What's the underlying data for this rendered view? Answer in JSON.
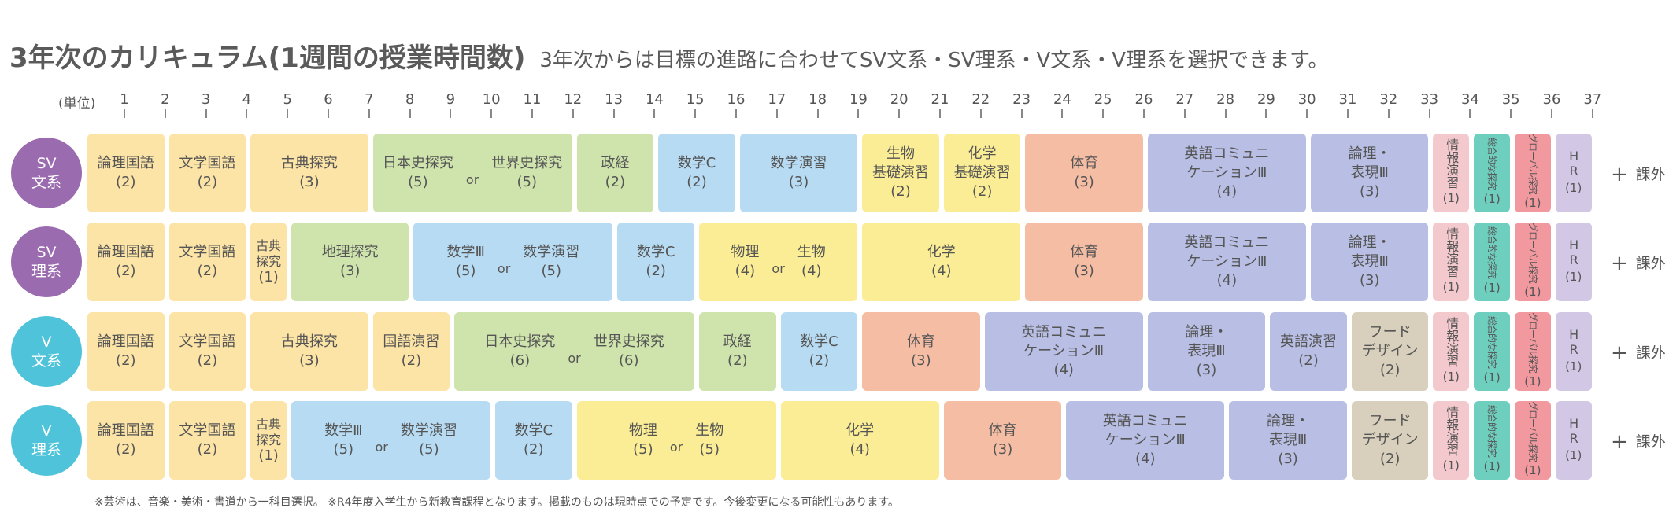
{
  "title": "3年次のカリキュラム(1週間の授業時間数)",
  "subtitle": "3年次からは目標の進路に合わせてSV文系・SV理系・V文系・V理系を選択できます。",
  "unit_label": "(単位)",
  "ticks": [
    "1",
    "2",
    "3",
    "4",
    "5",
    "6",
    "7",
    "8",
    "9",
    "10",
    "11",
    "12",
    "13",
    "14",
    "15",
    "16",
    "17",
    "18",
    "19",
    "20",
    "21",
    "22",
    "23",
    "24",
    "25",
    "26",
    "27",
    "28",
    "29",
    "30",
    "31",
    "32",
    "33",
    "34",
    "35",
    "36",
    "37"
  ],
  "extra_label": "課外",
  "extra_plus": "+",
  "colors": {
    "sv_circle": "#9b6bb0",
    "v_circle": "#4fc3d9",
    "kokugo": "#fce3a6",
    "shakai": "#cfe3ad",
    "sugaku": "#b7dbf2",
    "rika": "#fbed95",
    "taiiku": "#f5bda4",
    "eigo": "#b9bfe4",
    "food": "#d8d0bc",
    "jyoho": "#f4c9cd",
    "sogo": "#6fcfbf",
    "global": "#f2989f",
    "hr": "#d2c8e6"
  },
  "rows": [
    {
      "label_line1": "SV",
      "label_line2": "文系",
      "circle": "sv_circle",
      "cells": [
        {
          "c": "kokugo",
          "name": "論理国語",
          "units": "(2)"
        },
        {
          "c": "kokugo",
          "name": "文学国語",
          "units": "(2)"
        },
        {
          "c": "kokugo",
          "name": "古典探究",
          "units": "(3)"
        },
        {
          "c": "shakai",
          "or": true,
          "a_name": "日本史探究",
          "a_units": "(5)",
          "or_text": "or",
          "b_name": "世界史探究",
          "b_units": "(5)"
        },
        {
          "c": "shakai",
          "name": "政経",
          "units": "(2)"
        },
        {
          "c": "sugaku",
          "name": "数学C",
          "units": "(2)"
        },
        {
          "c": "sugaku",
          "name": "数学演習",
          "units": "(3)"
        },
        {
          "c": "rika",
          "name": "生物",
          "name2": "基礎演習",
          "units": "(2)"
        },
        {
          "c": "rika",
          "name": "化学",
          "name2": "基礎演習",
          "units": "(2)"
        },
        {
          "c": "taiiku",
          "name": "体育",
          "units": "(3)"
        },
        {
          "c": "eigo",
          "name": "英語コミュニ",
          "name2": "ケーションⅢ",
          "units": "(4)"
        },
        {
          "c": "eigo",
          "name": "論理・",
          "name2": "表現Ⅲ",
          "units": "(3)"
        },
        {
          "c": "jyoho",
          "narrow": "v",
          "name": "情報演習",
          "units": "(1)"
        },
        {
          "c": "sogo",
          "narrow": "r",
          "name": "総合的な探究",
          "units": "(1)"
        },
        {
          "c": "global",
          "narrow": "r",
          "name": "グローバル探究",
          "units": "(1)"
        },
        {
          "c": "hr",
          "narrow": "v",
          "name": "HR",
          "units": "(1)"
        }
      ]
    },
    {
      "label_line1": "SV",
      "label_line2": "理系",
      "circle": "sv_circle",
      "cells": [
        {
          "c": "kokugo",
          "name": "論理国語",
          "units": "(2)"
        },
        {
          "c": "kokugo",
          "name": "文学国語",
          "units": "(2)"
        },
        {
          "c": "kokugo",
          "narrow": "s",
          "name": "古典",
          "name2": "探究",
          "units": "(1)"
        },
        {
          "c": "shakai",
          "name": "地理探究",
          "units": "(3)"
        },
        {
          "c": "sugaku",
          "or": true,
          "a_name": "数学Ⅲ",
          "a_units": "(5)",
          "or_text": "or",
          "b_name": "数学演習",
          "b_units": "(5)"
        },
        {
          "c": "sugaku",
          "name": "数学C",
          "units": "(2)"
        },
        {
          "c": "rika",
          "or": true,
          "a_name": "物理",
          "a_units": "(4)",
          "or_text": "or",
          "b_name": "生物",
          "b_units": "(4)"
        },
        {
          "c": "rika",
          "name": "化学",
          "units": "(4)"
        },
        {
          "c": "taiiku",
          "name": "体育",
          "units": "(3)"
        },
        {
          "c": "eigo",
          "name": "英語コミュニ",
          "name2": "ケーションⅢ",
          "units": "(4)"
        },
        {
          "c": "eigo",
          "name": "論理・",
          "name2": "表現Ⅲ",
          "units": "(3)"
        },
        {
          "c": "jyoho",
          "narrow": "v",
          "name": "情報演習",
          "units": "(1)"
        },
        {
          "c": "sogo",
          "narrow": "r",
          "name": "総合的な探究",
          "units": "(1)"
        },
        {
          "c": "global",
          "narrow": "r",
          "name": "グローバル探究",
          "units": "(1)"
        },
        {
          "c": "hr",
          "narrow": "v",
          "name": "HR",
          "units": "(1)"
        }
      ]
    },
    {
      "label_line1": "V",
      "label_line2": "文系",
      "circle": "v_circle",
      "cells": [
        {
          "c": "kokugo",
          "name": "論理国語",
          "units": "(2)"
        },
        {
          "c": "kokugo",
          "name": "文学国語",
          "units": "(2)"
        },
        {
          "c": "kokugo",
          "name": "古典探究",
          "units": "(3)"
        },
        {
          "c": "kokugo",
          "name": "国語演習",
          "units": "(2)"
        },
        {
          "c": "shakai",
          "or": true,
          "a_name": "日本史探究",
          "a_units": "(6)",
          "or_text": "or",
          "b_name": "世界史探究",
          "b_units": "(6)"
        },
        {
          "c": "shakai",
          "name": "政経",
          "units": "(2)"
        },
        {
          "c": "sugaku",
          "name": "数学C",
          "units": "(2)"
        },
        {
          "c": "taiiku",
          "name": "体育",
          "units": "(3)"
        },
        {
          "c": "eigo",
          "name": "英語コミュニ",
          "name2": "ケーションⅢ",
          "units": "(4)"
        },
        {
          "c": "eigo",
          "name": "論理・",
          "name2": "表現Ⅲ",
          "units": "(3)"
        },
        {
          "c": "eigo",
          "name": "英語演習",
          "units": "(2)"
        },
        {
          "c": "food",
          "name": "フード",
          "name2": "デザイン",
          "units": "(2)"
        },
        {
          "c": "jyoho",
          "narrow": "v",
          "name": "情報演習",
          "units": "(1)"
        },
        {
          "c": "sogo",
          "narrow": "r",
          "name": "総合的な探究",
          "units": "(1)"
        },
        {
          "c": "global",
          "narrow": "r",
          "name": "グローバル探究",
          "units": "(1)"
        },
        {
          "c": "hr",
          "narrow": "v",
          "name": "HR",
          "units": "(1)"
        }
      ]
    },
    {
      "label_line1": "V",
      "label_line2": "理系",
      "circle": "v_circle",
      "cells": [
        {
          "c": "kokugo",
          "name": "論理国語",
          "units": "(2)"
        },
        {
          "c": "kokugo",
          "name": "文学国語",
          "units": "(2)"
        },
        {
          "c": "kokugo",
          "narrow": "s",
          "name": "古典",
          "name2": "探究",
          "units": "(1)"
        },
        {
          "c": "sugaku",
          "or": true,
          "a_name": "数学Ⅲ",
          "a_units": "(5)",
          "or_text": "or",
          "b_name": "数学演習",
          "b_units": "(5)"
        },
        {
          "c": "sugaku",
          "name": "数学C",
          "units": "(2)"
        },
        {
          "c": "rika",
          "or": true,
          "a_name": "物理",
          "a_units": "(5)",
          "or_text": "or",
          "b_name": "生物",
          "b_units": "(5)"
        },
        {
          "c": "rika",
          "name": "化学",
          "units": "(4)"
        },
        {
          "c": "taiiku",
          "name": "体育",
          "units": "(3)"
        },
        {
          "c": "eigo",
          "name": "英語コミュニ",
          "name2": "ケーションⅢ",
          "units": "(4)"
        },
        {
          "c": "eigo",
          "name": "論理・",
          "name2": "表現Ⅲ",
          "units": "(3)"
        },
        {
          "c": "food",
          "name": "フード",
          "name2": "デザイン",
          "units": "(2)"
        },
        {
          "c": "jyoho",
          "narrow": "v",
          "name": "情報演習",
          "units": "(1)"
        },
        {
          "c": "sogo",
          "narrow": "r",
          "name": "総合的な探究",
          "units": "(1)"
        },
        {
          "c": "global",
          "narrow": "r",
          "name": "グローバル探究",
          "units": "(1)"
        },
        {
          "c": "hr",
          "narrow": "v",
          "name": "HR",
          "units": "(1)"
        }
      ]
    }
  ],
  "footnote": "※芸術は、音楽・美術・書道から一科目選択。 ※R4年度入学生から新教育課程となります。掲載のものは現時点での予定です。今後変更になる可能性もあります。"
}
